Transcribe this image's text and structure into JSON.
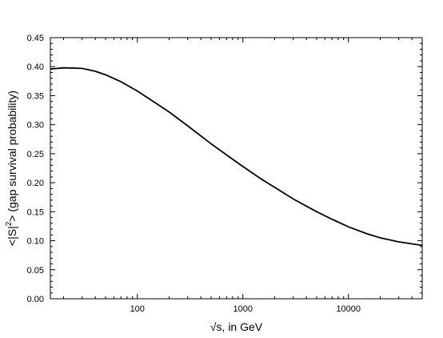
{
  "chart_data": {
    "type": "line",
    "title": "",
    "xlabel": "√s, in GeV",
    "ylabel_main": "<|S|",
    "ylabel_sup": "2",
    "ylabel_rest": "> (gap survival probability)",
    "x_scale": "log",
    "xlim": [
      15,
      50000
    ],
    "ylim": [
      0.0,
      0.45
    ],
    "x_ticks": [
      {
        "value": 100,
        "label": "100"
      },
      {
        "value": 1000,
        "label": "1000"
      },
      {
        "value": 10000,
        "label": "10000"
      }
    ],
    "y_ticks": [
      {
        "value": 0.0,
        "label": "0.00"
      },
      {
        "value": 0.05,
        "label": "0.05"
      },
      {
        "value": 0.1,
        "label": "0.10"
      },
      {
        "value": 0.15,
        "label": "0.15"
      },
      {
        "value": 0.2,
        "label": "0.20"
      },
      {
        "value": 0.25,
        "label": "0.25"
      },
      {
        "value": 0.3,
        "label": "0.30"
      },
      {
        "value": 0.35,
        "label": "0.35"
      },
      {
        "value": 0.4,
        "label": "0.40"
      },
      {
        "value": 0.45,
        "label": "0.45"
      }
    ],
    "grid": false,
    "legend": "none",
    "series": [
      {
        "color": "#000000",
        "x": [
          15,
          20,
          30,
          40,
          50,
          70,
          100,
          150,
          200,
          300,
          500,
          700,
          1000,
          1500,
          2000,
          3000,
          5000,
          7000,
          10000,
          15000,
          20000,
          30000,
          50000
        ],
        "y": [
          0.396,
          0.398,
          0.397,
          0.392,
          0.386,
          0.374,
          0.358,
          0.337,
          0.322,
          0.298,
          0.267,
          0.248,
          0.228,
          0.206,
          0.192,
          0.172,
          0.15,
          0.137,
          0.124,
          0.112,
          0.105,
          0.098,
          0.092
        ]
      }
    ]
  }
}
